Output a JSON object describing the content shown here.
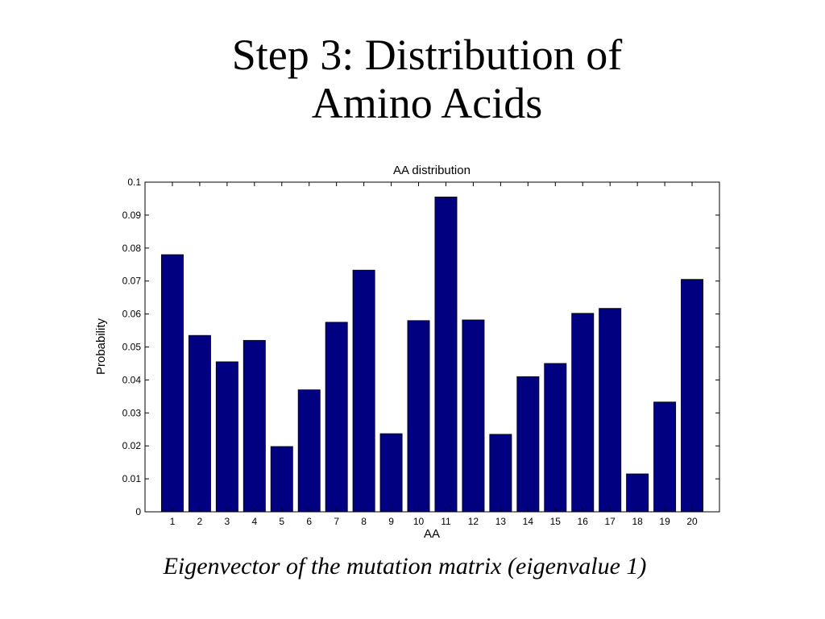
{
  "slide": {
    "title_line1": "Step 3: Distribution of",
    "title_line2": "Amino Acids",
    "caption": "Eigenvector of the mutation matrix (eigenvalue 1)"
  },
  "chart_data": {
    "type": "bar",
    "title": "AA distribution",
    "xlabel": "AA",
    "ylabel": "Probability",
    "categories": [
      "1",
      "2",
      "3",
      "4",
      "5",
      "6",
      "7",
      "8",
      "9",
      "10",
      "11",
      "12",
      "13",
      "14",
      "15",
      "16",
      "17",
      "18",
      "19",
      "20"
    ],
    "values": [
      0.078,
      0.0535,
      0.0455,
      0.052,
      0.0198,
      0.037,
      0.0575,
      0.0733,
      0.0237,
      0.058,
      0.0955,
      0.0582,
      0.0235,
      0.041,
      0.045,
      0.0602,
      0.0617,
      0.0115,
      0.0333,
      0.0705
    ],
    "ylim": [
      0,
      0.1
    ],
    "yticks": [
      "0",
      "0.01",
      "0.02",
      "0.03",
      "0.04",
      "0.05",
      "0.06",
      "0.07",
      "0.08",
      "0.09",
      "0.1"
    ],
    "bar_color": "#000080",
    "grid": false
  }
}
